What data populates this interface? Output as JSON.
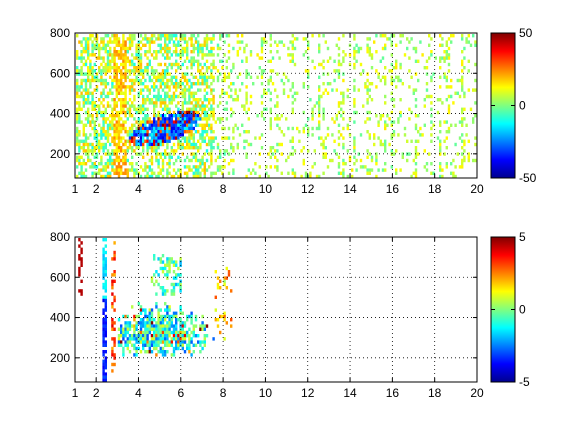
{
  "chart_data": [
    {
      "type": "heatmap",
      "xlim": [
        1,
        20
      ],
      "ylim": [
        80,
        800
      ],
      "xticks": [
        1,
        2,
        4,
        6,
        8,
        10,
        12,
        14,
        16,
        18,
        20
      ],
      "xtick_labels": [
        "1",
        "2",
        "4",
        "6",
        "8",
        "10",
        "12",
        "14",
        "16",
        "18",
        "20"
      ],
      "yticks": [
        200,
        400,
        600,
        800
      ],
      "ytick_labels": [
        "200",
        "400",
        "600",
        "800"
      ],
      "grid": true,
      "colormap": "jet",
      "clim": [
        -50,
        50
      ],
      "colorbar_ticks": [
        50,
        0,
        -50
      ],
      "colorbar_tick_labels": [
        "50",
        "0",
        "-50"
      ],
      "approx_cells": {
        "x_range": [
          1,
          20
        ],
        "y_range": [
          80,
          800
        ],
        "description_of_values": "dense band of values near 0 to +15 for x 1-7.5; strong negative cluster (-45 to -30) near x 3.5-7, y 250-400; sparse scattered cells near 0 to +10 for x 8-20"
      }
    },
    {
      "type": "heatmap",
      "xlim": [
        1,
        20
      ],
      "ylim": [
        80,
        800
      ],
      "xticks": [
        1,
        2,
        4,
        6,
        8,
        10,
        12,
        14,
        16,
        18,
        20
      ],
      "xtick_labels": [
        "1",
        "2",
        "4",
        "6",
        "8",
        "10",
        "12",
        "14",
        "16",
        "18",
        "20"
      ],
      "yticks": [
        200,
        400,
        600,
        800
      ],
      "ytick_labels": [
        "200",
        "400",
        "600",
        "800"
      ],
      "grid": true,
      "colormap": "jet",
      "clim": [
        -5,
        5
      ],
      "colorbar_ticks": [
        5,
        0,
        -5
      ],
      "colorbar_tick_labels": [
        "5",
        "0",
        "-5"
      ],
      "approx_cells": {
        "x_range": [
          1,
          8.5
        ],
        "y_range": [
          100,
          800
        ],
        "description_of_values": "patch of values -5 to +2 for x 3-7.5, y 220-500; vertical streaks near x 1.2, 2.3, 2.7; few scattered cells to x 8.3"
      }
    }
  ],
  "colors": {
    "axes": "#000000",
    "background": "#ffffff"
  }
}
